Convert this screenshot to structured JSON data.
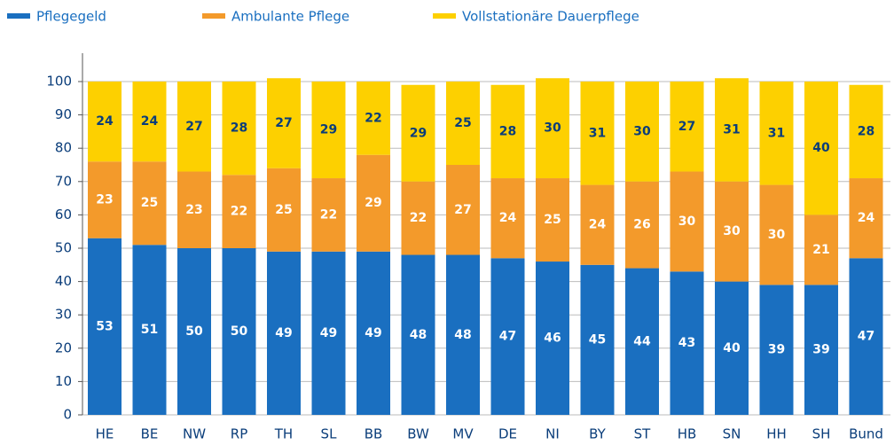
{
  "chart_data": {
    "type": "stacked_bar",
    "categories": [
      "HE",
      "BE",
      "NW",
      "RP",
      "TH",
      "SL",
      "BB",
      "BW",
      "MV",
      "DE",
      "NI",
      "BY",
      "ST",
      "HB",
      "SN",
      "HH",
      "SH",
      "Bund"
    ],
    "series": [
      {
        "name": "Pflegegeld",
        "color": "#1a6fc0",
        "values": [
          53,
          51,
          50,
          50,
          49,
          49,
          49,
          48,
          48,
          47,
          46,
          45,
          44,
          43,
          40,
          39,
          39,
          47
        ]
      },
      {
        "name": "Ambulante Pflege",
        "color": "#f39a2b",
        "values": [
          23,
          25,
          23,
          22,
          25,
          22,
          29,
          22,
          27,
          24,
          25,
          24,
          26,
          30,
          30,
          30,
          21,
          24
        ]
      },
      {
        "name": "Vollstationäre Dauerpflege",
        "color": "#fdd000",
        "values": [
          24,
          24,
          27,
          28,
          27,
          29,
          22,
          29,
          25,
          28,
          30,
          31,
          30,
          27,
          31,
          31,
          40,
          28
        ]
      }
    ],
    "ylim": [
      0,
      100
    ],
    "yticks": [
      0,
      10,
      20,
      30,
      40,
      50,
      60,
      70,
      80,
      90,
      100
    ],
    "grid": true
  }
}
